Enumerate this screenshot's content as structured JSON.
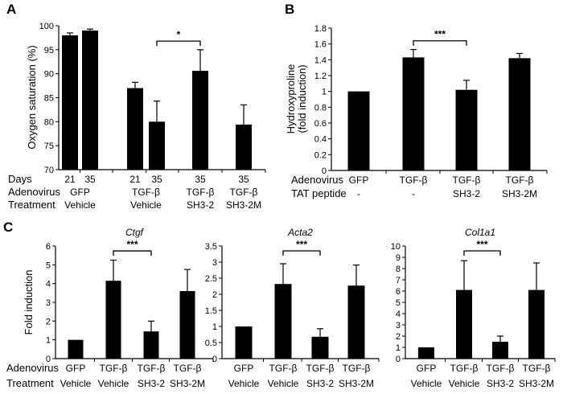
{
  "chart_data": [
    {
      "panel": "A",
      "type": "bar",
      "title": "",
      "ylabel": [
        "Oxygen saturation (%)"
      ],
      "ylim": [
        70,
        100
      ],
      "yticks": [
        "70",
        "75",
        "80",
        "85",
        "90",
        "95",
        "100"
      ],
      "values": [
        98,
        99,
        87,
        80,
        90.6,
        79.4
      ],
      "errors": [
        0.5,
        0.3,
        1.2,
        4.3,
        4.4,
        4.1
      ],
      "rows": [
        {
          "label": "Days",
          "groups": [
            {
              "label": "21",
              "bars": [
                0
              ]
            },
            {
              "label": "35",
              "bars": [
                1
              ]
            },
            {
              "label": "21",
              "bars": [
                2
              ]
            },
            {
              "label": "35",
              "bars": [
                3
              ]
            },
            {
              "label": "35",
              "bars": [
                4
              ]
            },
            {
              "label": "35",
              "bars": [
                5
              ]
            }
          ]
        },
        {
          "label": "Adenovirus",
          "groups": [
            {
              "label": "GFP",
              "bars": [
                0,
                1
              ]
            },
            {
              "label": "TGF-β",
              "bars": [
                2,
                3
              ]
            },
            {
              "label": "TGF-β",
              "bars": [
                4
              ]
            },
            {
              "label": "TGF-β",
              "bars": [
                5
              ]
            }
          ]
        },
        {
          "label": "Treatment",
          "groups": [
            {
              "label": "Vehicle",
              "bars": [
                0,
                1
              ]
            },
            {
              "label": "Vehicle",
              "bars": [
                2,
                3
              ]
            },
            {
              "label": "SH3-2",
              "bars": [
                4
              ]
            },
            {
              "label": "SH3-2M",
              "bars": [
                5
              ]
            }
          ]
        }
      ],
      "significance": {
        "from": 3,
        "to": 4,
        "level": 96.8,
        "label": "*"
      },
      "grid": false
    },
    {
      "panel": "B",
      "type": "bar",
      "title": "",
      "ylabel": [
        "Hydroxyproline",
        "(fold induction)"
      ],
      "ylim": [
        0,
        1.8
      ],
      "yticks": [
        "0",
        "0.2",
        "0.4",
        "0.6",
        "0.8",
        "1",
        "1.2",
        "1.4",
        "1.6",
        "1.8"
      ],
      "values": [
        1.0,
        1.43,
        1.02,
        1.42
      ],
      "errors": [
        0,
        0.1,
        0.12,
        0.06
      ],
      "rows": [
        {
          "label": "Adenovirus",
          "groups": [
            {
              "label": "GFP",
              "bars": [
                0
              ]
            },
            {
              "label": "TGF-β",
              "bars": [
                1
              ]
            },
            {
              "label": "TGF-β",
              "bars": [
                2
              ]
            },
            {
              "label": "TGF-β",
              "bars": [
                3
              ]
            }
          ]
        },
        {
          "label": "TAT peptide",
          "groups": [
            {
              "label": "-",
              "bars": [
                0
              ]
            },
            {
              "label": "-",
              "bars": [
                1
              ]
            },
            {
              "label": "SH3-2",
              "bars": [
                2
              ]
            },
            {
              "label": "SH3-2M",
              "bars": [
                3
              ]
            }
          ]
        }
      ],
      "significance": {
        "from": 1,
        "to": 2,
        "level": 1.64,
        "label": "***"
      },
      "grid": false
    },
    {
      "panel": "C",
      "type": "bar",
      "title": "Ctgf",
      "ylabel": [
        "Fold induction"
      ],
      "ylim": [
        0,
        6
      ],
      "yticks": [
        "0",
        "1",
        "2",
        "3",
        "4",
        "5",
        "6"
      ],
      "values": [
        1.0,
        4.15,
        1.45,
        3.6
      ],
      "errors": [
        0,
        1.1,
        0.55,
        1.15
      ],
      "rows": [
        {
          "label": "Adenovirus",
          "groups": [
            {
              "label": "GFP",
              "bars": [
                0
              ]
            },
            {
              "label": "TGF-β",
              "bars": [
                1
              ]
            },
            {
              "label": "TGF-β",
              "bars": [
                2
              ]
            },
            {
              "label": "TGF-β",
              "bars": [
                3
              ]
            }
          ]
        },
        {
          "label": "Treatment",
          "groups": [
            {
              "label": "Vehicle",
              "bars": [
                0
              ]
            },
            {
              "label": "Vehicle",
              "bars": [
                1
              ]
            },
            {
              "label": "SH3-2",
              "bars": [
                2
              ]
            },
            {
              "label": "SH3-2M",
              "bars": [
                3
              ]
            }
          ]
        }
      ],
      "significance": {
        "from": 1,
        "to": 2,
        "level": 5.74,
        "label": "***"
      },
      "grid": false
    },
    {
      "panel": "",
      "type": "bar",
      "title": "Acta2",
      "ylabel": [],
      "ylim": [
        0,
        3.5
      ],
      "yticks": [
        "0",
        "0.5",
        "1",
        "1.5",
        "2",
        "2.5",
        "3",
        "3.5"
      ],
      "values": [
        1.0,
        2.32,
        0.68,
        2.27
      ],
      "errors": [
        0,
        0.63,
        0.25,
        0.64
      ],
      "rows": [
        {
          "label": "",
          "groups": [
            {
              "label": "GFP",
              "bars": [
                0
              ]
            },
            {
              "label": "TGF-β",
              "bars": [
                1
              ]
            },
            {
              "label": "TGF-β",
              "bars": [
                2
              ]
            },
            {
              "label": "TGF-β",
              "bars": [
                3
              ]
            }
          ]
        },
        {
          "label": "",
          "groups": [
            {
              "label": "Vehicle",
              "bars": [
                0
              ]
            },
            {
              "label": "Vehicle",
              "bars": [
                1
              ]
            },
            {
              "label": "SH3-2",
              "bars": [
                2
              ]
            },
            {
              "label": "SH3-2M",
              "bars": [
                3
              ]
            }
          ]
        }
      ],
      "significance": {
        "from": 1,
        "to": 2,
        "level": 3.35,
        "label": "***"
      },
      "grid": false
    },
    {
      "panel": "",
      "type": "bar",
      "title": "Col1a1",
      "ylabel": [],
      "ylim": [
        0,
        10
      ],
      "yticks": [
        "0",
        "1",
        "2",
        "3",
        "4",
        "5",
        "6",
        "7",
        "8",
        "9",
        "10"
      ],
      "values": [
        1.0,
        6.1,
        1.5,
        6.1
      ],
      "errors": [
        0,
        2.6,
        0.5,
        2.4
      ],
      "rows": [
        {
          "label": "",
          "groups": [
            {
              "label": "GFP",
              "bars": [
                0
              ]
            },
            {
              "label": "TGF-β",
              "bars": [
                1
              ]
            },
            {
              "label": "TGF-β",
              "bars": [
                2
              ]
            },
            {
              "label": "TGF-β",
              "bars": [
                3
              ]
            }
          ]
        },
        {
          "label": "",
          "groups": [
            {
              "label": "Vehicle",
              "bars": [
                0
              ]
            },
            {
              "label": "Vehicle",
              "bars": [
                1
              ]
            },
            {
              "label": "SH3-2",
              "bars": [
                2
              ]
            },
            {
              "label": "SH3-2M",
              "bars": [
                3
              ]
            }
          ]
        }
      ],
      "significance": {
        "from": 1,
        "to": 2,
        "level": 9.57,
        "label": "***"
      },
      "grid": false
    }
  ]
}
